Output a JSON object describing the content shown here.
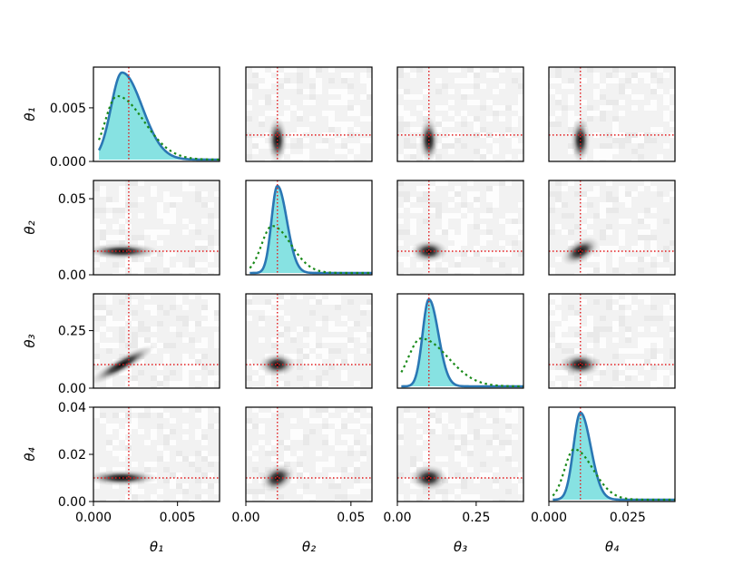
{
  "colors": {
    "background": "#ffffff",
    "axes": "#000000",
    "posterior_line": "#2a77b4",
    "posterior_fill": "#5fd8d8",
    "prior_line": "#1a8a1a",
    "truth_line": "#e31a1c",
    "density_max": "#000000",
    "density_bg": "#f2f2f2"
  },
  "chart_data": {
    "type": "corner",
    "title": "",
    "parameters": [
      {
        "name": "θ1",
        "axis_label": "θ₁",
        "range": [
          0,
          0.0075
        ],
        "ticks": [
          0,
          0.005
        ],
        "tick_labels_y": [
          "0.000",
          "0.005"
        ],
        "tick_labels_x": [
          "0.000",
          "0.005"
        ],
        "truth": 0.0021,
        "posterior_mode": 0.0017,
        "posterior_sigma_left": 0.00065,
        "posterior_sigma_right": 0.0012,
        "prior_mode": 0.0014,
        "prior_sigma_left": 0.0007,
        "prior_sigma_right": 0.0016
      },
      {
        "name": "θ2",
        "axis_label": "θ₂",
        "range": [
          0,
          0.06
        ],
        "ticks": [
          0,
          0.05
        ],
        "tick_labels_y": [
          "0.00",
          "0.05"
        ],
        "tick_labels_x": [
          "0.00",
          "0.05"
        ],
        "truth": 0.015,
        "posterior_mode": 0.015,
        "posterior_sigma_left": 0.0028,
        "posterior_sigma_right": 0.0045,
        "prior_mode": 0.0125,
        "prior_sigma_left": 0.005,
        "prior_sigma_right": 0.009
      },
      {
        "name": "θ3",
        "axis_label": "θ₃",
        "range": [
          0,
          0.4
        ],
        "ticks": [
          0,
          0.25
        ],
        "tick_labels_y": [
          "0.00",
          "0.25"
        ],
        "tick_labels_x": [
          "0.00",
          "0.25"
        ],
        "truth": 0.1,
        "posterior_mode": 0.1,
        "posterior_sigma_left": 0.02,
        "posterior_sigma_right": 0.03,
        "prior_mode": 0.075,
        "prior_sigma_left": 0.04,
        "prior_sigma_right": 0.085
      },
      {
        "name": "θ4",
        "axis_label": "θ₄",
        "range": [
          0,
          0.04
        ],
        "ticks": [
          0,
          0.02
        ],
        "tick_labels_y": [
          "0.00",
          "0.02"
        ],
        "tick_labels_x": [
          "0.000",
          "0.025"
        ],
        "tick_values_x": [
          0,
          0.025
        ],
        "tick_values_y": [
          0,
          0.02,
          0.04
        ],
        "tick_labels_y_full": [
          "0.00",
          "0.02",
          "0.04"
        ],
        "truth": 0.01,
        "posterior_mode": 0.01,
        "posterior_sigma_left": 0.0022,
        "posterior_sigma_right": 0.0033,
        "prior_mode": 0.008,
        "prior_sigma_left": 0.003,
        "prior_sigma_right": 0.006
      }
    ],
    "diagonal_peak_density_ticks": {
      "θ1": {
        "values": [
          0,
          0.005
        ],
        "labels": [
          "0.000",
          "0.005"
        ]
      },
      "θ2": {
        "values": [
          0,
          0.05
        ],
        "labels": [
          "0.00",
          "0.05"
        ]
      },
      "θ3": {
        "values": [
          0,
          0.25
        ],
        "labels": [
          "0.00",
          "0.25"
        ]
      },
      "θ4": {
        "values": [
          0,
          0.02,
          0.04
        ],
        "labels": [
          "0.00",
          "0.02",
          "0.04"
        ]
      }
    },
    "x_ticks": {
      "θ1": {
        "values": [
          0,
          0.005
        ],
        "labels": [
          "0.000",
          "0.005"
        ]
      },
      "θ2": {
        "values": [
          0,
          0.05
        ],
        "labels": [
          "0.00",
          "0.05"
        ]
      },
      "θ3": {
        "values": [
          0,
          0.25
        ],
        "labels": [
          "0.00",
          "0.25"
        ]
      },
      "θ4": {
        "values": [
          0,
          0.025
        ],
        "labels": [
          "0.000",
          "0.025"
        ]
      }
    },
    "series": [
      {
        "name": "posterior",
        "style": "solid line with filled area"
      },
      {
        "name": "prior",
        "style": "dotted line"
      },
      {
        "name": "true value",
        "style": "dotted crosshair"
      }
    ],
    "grid": false,
    "legend": "none"
  }
}
